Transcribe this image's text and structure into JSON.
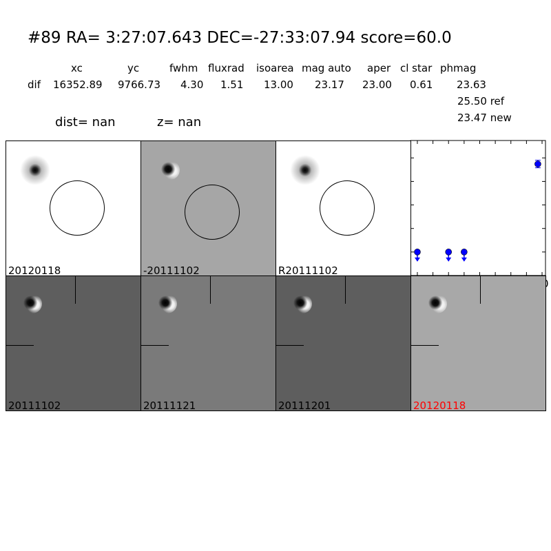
{
  "header": {
    "title": "#89   RA= 3:27:07.643 DEC=-27:33:07.94      score=60.0",
    "columns": [
      "xc",
      "yc",
      "fwhm",
      "fluxrad",
      "isoarea",
      "mag auto",
      "aper",
      "cl star",
      "phmag"
    ],
    "row_label": "dif",
    "row_values": [
      "16352.89",
      "9766.73",
      "4.30",
      "1.51",
      "13.00",
      "23.17",
      "23.00",
      "0.61",
      "23.63"
    ],
    "ref": "25.50 ref",
    "new": "23.47 new",
    "dist": "dist=   nan",
    "z": "z=   nan"
  },
  "panels": [
    {
      "label": "20120118",
      "bg": "#ffffff"
    },
    {
      "label": "-20111102",
      "bg": "#a6a6a6"
    },
    {
      "label": "R20111102",
      "bg": "#ffffff"
    },
    {
      "label": "20111102",
      "bg": "#5e5e5e"
    },
    {
      "label": "20111121",
      "bg": "#7a7a7a"
    },
    {
      "label": "20111201",
      "bg": "#5e5e5e"
    },
    {
      "label": "20120118",
      "bg": "#a8a8a8",
      "color": "#ff0000"
    }
  ],
  "chart_data": {
    "type": "scatter",
    "xlim": [
      -4.4,
      82.2
    ],
    "ylim": [
      26.0,
      23.13
    ],
    "y_inverted": true,
    "xticks": [
      "0",
      "10",
      "20",
      "30",
      "40",
      "50",
      "60",
      "70",
      "80"
    ],
    "yticks": [
      "23.5",
      "24.0",
      "24.5",
      "25.0",
      "25.5",
      "26.0"
    ],
    "color": "#0000ff",
    "points": [
      {
        "x": 0,
        "y": 25.5,
        "upper_limit": true
      },
      {
        "x": 20,
        "y": 25.5,
        "upper_limit": true
      },
      {
        "x": 30,
        "y": 25.5,
        "upper_limit": true
      },
      {
        "x": 77.3,
        "y": 23.63,
        "err": 0.08,
        "upper_limit": false
      }
    ]
  }
}
